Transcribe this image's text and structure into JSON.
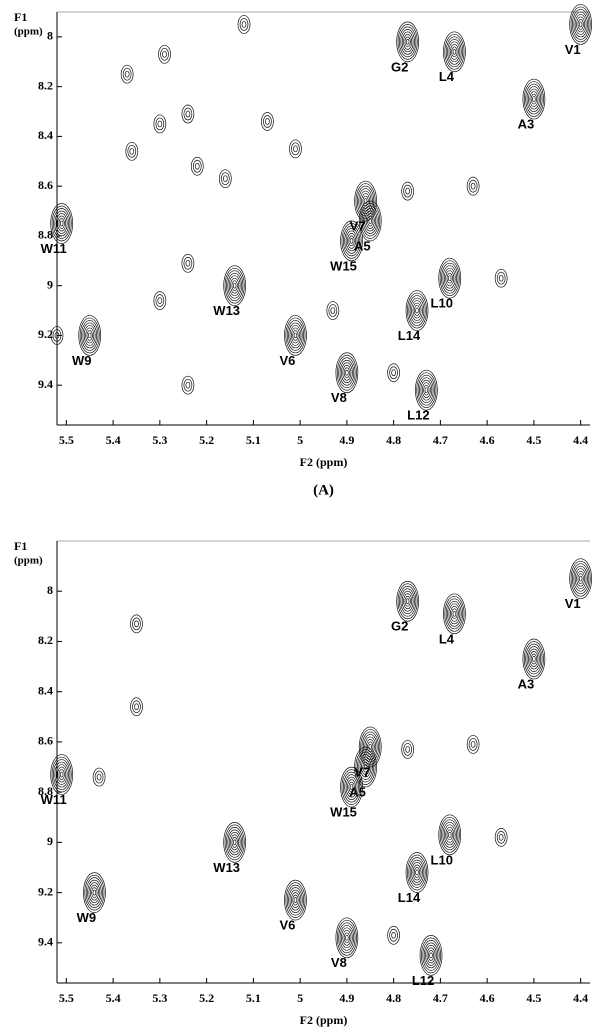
{
  "chart_data": [
    {
      "type": "contour",
      "y_label": "F1",
      "y_label_unit": "(ppm)",
      "x_label": "F2 (ppm)",
      "panel_label": "(A)",
      "xlim": [
        5.52,
        4.38
      ],
      "ylim": [
        7.9,
        9.56
      ],
      "xticks": [
        5.5,
        5.4,
        5.3,
        5.2,
        5.1,
        5.0,
        4.9,
        4.8,
        4.7,
        4.6,
        4.5,
        4.4
      ],
      "yticks": [
        8.0,
        8.2,
        8.4,
        8.6,
        8.8,
        9.0,
        9.2,
        9.4
      ],
      "peaks": {
        "labels": [
          "V1",
          "G2",
          "A3",
          "L4",
          "A5",
          "V6",
          "V7",
          "V8",
          "W9",
          "L10",
          "W11",
          "L12",
          "W13",
          "L14",
          "W15",
          null,
          null,
          null,
          null,
          null,
          null,
          null,
          null,
          null,
          null,
          null,
          null,
          null,
          null,
          null,
          null,
          null,
          null,
          null
        ],
        "x": [
          4.4,
          4.77,
          4.5,
          4.67,
          4.85,
          5.01,
          4.86,
          4.9,
          5.45,
          4.68,
          5.51,
          4.73,
          5.14,
          4.75,
          4.89,
          5.37,
          5.29,
          5.3,
          5.24,
          5.36,
          5.22,
          5.16,
          5.12,
          5.07,
          5.01,
          4.77,
          4.63,
          4.57,
          5.24,
          5.3,
          5.52,
          4.8,
          4.93,
          5.24
        ],
        "y": [
          7.95,
          8.02,
          8.25,
          8.06,
          8.74,
          9.2,
          8.66,
          9.35,
          9.2,
          8.97,
          8.75,
          9.42,
          9.0,
          9.1,
          8.82,
          8.15,
          8.07,
          8.35,
          8.31,
          8.46,
          8.52,
          8.57,
          7.95,
          8.34,
          8.45,
          8.62,
          8.6,
          8.97,
          8.91,
          9.06,
          9.2,
          9.35,
          9.1,
          9.4
        ]
      }
    },
    {
      "type": "contour",
      "y_label": "F1",
      "y_label_unit": "(ppm)",
      "x_label": "F2 (ppm)",
      "panel_label": "(B)",
      "xlim": [
        5.52,
        4.38
      ],
      "ylim": [
        7.8,
        9.56
      ],
      "xticks": [
        5.5,
        5.4,
        5.3,
        5.2,
        5.1,
        5.0,
        4.9,
        4.8,
        4.7,
        4.6,
        4.5,
        4.4
      ],
      "yticks": [
        8.0,
        8.2,
        8.4,
        8.6,
        8.8,
        9.0,
        9.2,
        9.4
      ],
      "peaks": {
        "labels": [
          "V1",
          "G2",
          "A3",
          "L4",
          "A5",
          "V6",
          "V7",
          "V8",
          "W9",
          "L10",
          "W11",
          "L12",
          "W13",
          "L14",
          "W15",
          null,
          null,
          null,
          null,
          null,
          null,
          null
        ],
        "x": [
          4.4,
          4.77,
          4.5,
          4.67,
          4.86,
          5.01,
          4.85,
          4.9,
          5.44,
          4.68,
          5.51,
          4.72,
          5.14,
          4.75,
          4.89,
          5.35,
          5.35,
          5.43,
          4.77,
          4.63,
          4.57,
          4.8
        ],
        "y": [
          7.95,
          8.04,
          8.27,
          8.09,
          8.7,
          9.23,
          8.62,
          9.38,
          9.2,
          8.97,
          8.73,
          9.45,
          9.0,
          9.12,
          8.78,
          8.13,
          8.46,
          8.74,
          8.63,
          8.61,
          8.98,
          9.37
        ]
      }
    }
  ]
}
